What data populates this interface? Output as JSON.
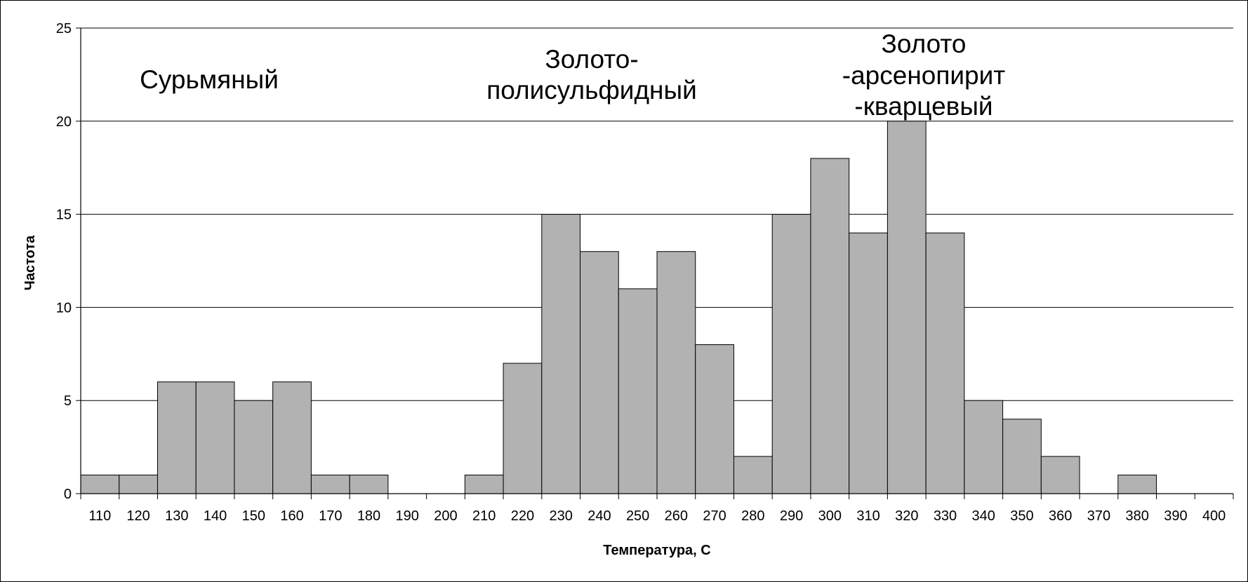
{
  "chart_data": {
    "type": "bar",
    "xlabel": "Температура, С",
    "ylabel": "Частота",
    "ylim": [
      0,
      25
    ],
    "yticks": [
      0,
      5,
      10,
      15,
      20,
      25
    ],
    "grid": true,
    "categories": [
      "110",
      "120",
      "130",
      "140",
      "150",
      "160",
      "170",
      "180",
      "190",
      "200",
      "210",
      "220",
      "230",
      "240",
      "250",
      "260",
      "270",
      "280",
      "290",
      "300",
      "310",
      "320",
      "330",
      "340",
      "350",
      "360",
      "370",
      "380",
      "390",
      "400"
    ],
    "values": [
      1,
      1,
      6,
      6,
      5,
      6,
      1,
      1,
      0,
      0,
      1,
      7,
      15,
      13,
      11,
      13,
      8,
      2,
      15,
      18,
      14,
      20,
      14,
      5,
      4,
      2,
      0,
      1,
      0,
      0
    ],
    "bar_color": "#b2b2b2",
    "annotations": [
      {
        "lines": [
          "Сурьмяный"
        ]
      },
      {
        "lines": [
          "Золото-",
          "полисульфидный"
        ]
      },
      {
        "lines": [
          "Золото",
          "-арсенопирит",
          "-кварцевый"
        ]
      }
    ]
  }
}
